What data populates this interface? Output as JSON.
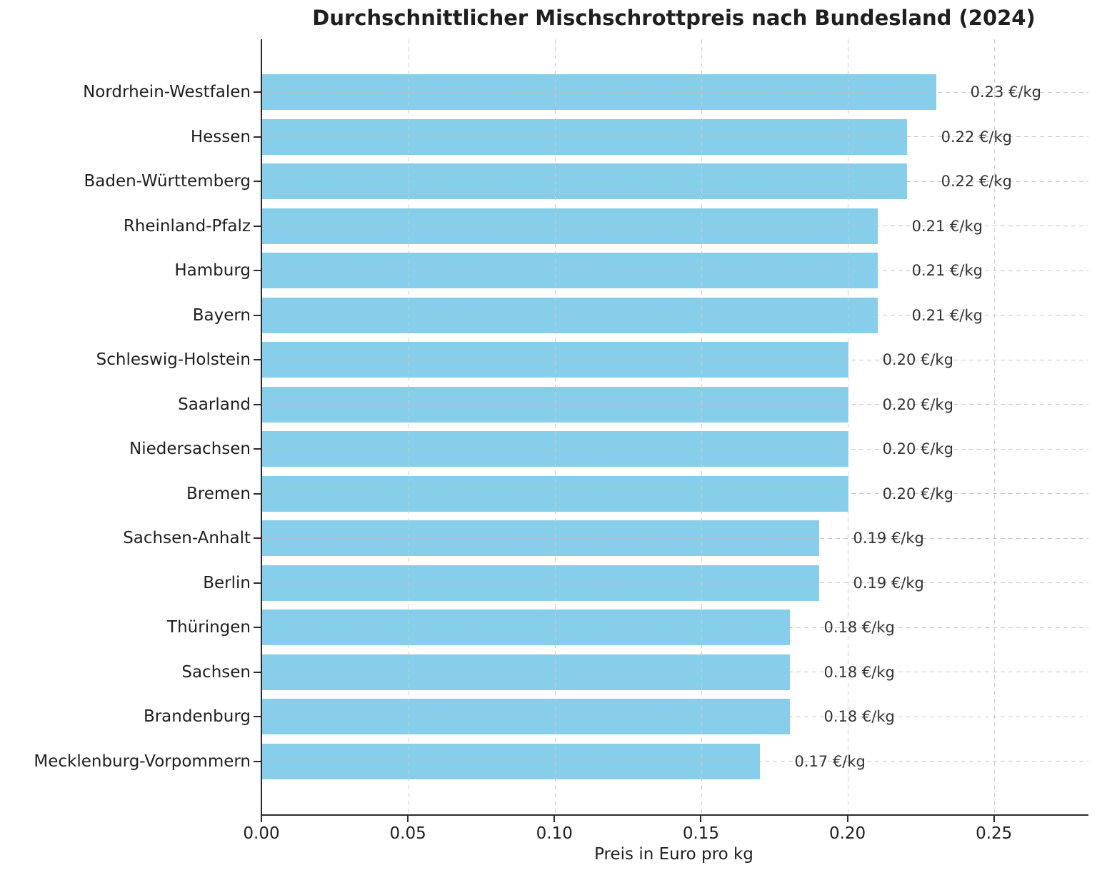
{
  "chart_data": {
    "type": "bar",
    "orientation": "horizontal",
    "title": "Durchschnittlicher Mischschrottpreis nach Bundesland (2024)",
    "xlabel": "Preis in Euro pro kg",
    "ylabel": "",
    "categories": [
      "Nordrhein-Westfalen",
      "Hessen",
      "Baden-Württemberg",
      "Rheinland-Pfalz",
      "Hamburg",
      "Bayern",
      "Schleswig-Holstein",
      "Saarland",
      "Niedersachsen",
      "Bremen",
      "Sachsen-Anhalt",
      "Berlin",
      "Thüringen",
      "Sachsen",
      "Brandenburg",
      "Mecklenburg-Vorpommern"
    ],
    "values": [
      0.23,
      0.22,
      0.22,
      0.21,
      0.21,
      0.21,
      0.2,
      0.2,
      0.2,
      0.2,
      0.19,
      0.19,
      0.18,
      0.18,
      0.18,
      0.17
    ],
    "value_labels": [
      "0.23 €/kg",
      "0.22 €/kg",
      "0.22 €/kg",
      "0.21 €/kg",
      "0.21 €/kg",
      "0.21 €/kg",
      "0.20 €/kg",
      "0.20 €/kg",
      "0.20 €/kg",
      "0.20 €/kg",
      "0.19 €/kg",
      "0.19 €/kg",
      "0.18 €/kg",
      "0.18 €/kg",
      "0.18 €/kg",
      "0.17 €/kg"
    ],
    "x_tick_labels": [
      "0.00",
      "0.05",
      "0.10",
      "0.15",
      "0.20",
      "0.25"
    ],
    "x_tick_values": [
      0.0,
      0.05,
      0.1,
      0.15,
      0.2,
      0.25
    ],
    "xlim": [
      0,
      0.282
    ],
    "grid": true,
    "legend": null,
    "colors": {
      "bar": "#87CEEB",
      "grid_h": "#bdbdbd",
      "grid_v": "#c9c9c9",
      "spine": "#2b2b2b",
      "text": "#1f1f1f",
      "value_text": "#333333"
    }
  }
}
